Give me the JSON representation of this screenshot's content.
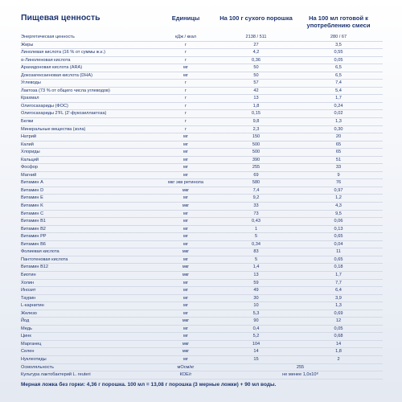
{
  "table": {
    "header": [
      "Пищевая ценность",
      "Единицы",
      "На 100 г сухого порошка",
      "На 100 мл готовой к употреблению смеси"
    ],
    "rows": [
      [
        "Энергетическая ценность",
        "кДж / ккал",
        "2138 / 511",
        "280 / 67"
      ],
      [
        "Жиры",
        "г",
        "27",
        "3,5"
      ],
      [
        "Линолевая кислота (16 % от суммы ж.к.)",
        "г",
        "4,2",
        "0,55"
      ],
      [
        "α-Линоленовая кислота",
        "г",
        "0,36",
        "0,05"
      ],
      [
        "Арахидоновая кислота (ARA)",
        "мг",
        "50",
        "6,5"
      ],
      [
        "Докозагексаеновая кислота (DHA)",
        "мг",
        "50",
        "6,5"
      ],
      [
        "Углеводы",
        "г",
        "57",
        "7,4"
      ],
      [
        "Лактоза (73 % от общего числа углеводов)",
        "г",
        "42",
        "5,4"
      ],
      [
        "Крахмал",
        "г",
        "13",
        "1,7"
      ],
      [
        "Олигосахариды (ФОС)",
        "г",
        "1,8",
        "0,24"
      ],
      [
        "Олигосахариды 2'FL (2'-фукозиллактоза)",
        "г",
        "0,15",
        "0,02"
      ],
      [
        "Белки",
        "г",
        "9,8",
        "1,3"
      ],
      [
        "Минеральные вещества (зола)",
        "г",
        "2,3",
        "0,30"
      ],
      [
        "Натрий",
        "мг",
        "150",
        "20"
      ],
      [
        "Калий",
        "мг",
        "500",
        "65"
      ],
      [
        "Хлориды",
        "мг",
        "500",
        "65"
      ],
      [
        "Кальций",
        "мг",
        "390",
        "51"
      ],
      [
        "Фосфор",
        "мг",
        "255",
        "33"
      ],
      [
        "Магний",
        "мг",
        "69",
        "9"
      ],
      [
        "Витамин А",
        "мкг экв ретинола",
        "580",
        "76"
      ],
      [
        "Витамин D",
        "мкг",
        "7,4",
        "0,97"
      ],
      [
        "Витамин E",
        "мг",
        "9,2",
        "1,2"
      ],
      [
        "Витамин K",
        "мкг",
        "33",
        "4,3"
      ],
      [
        "Витамин C",
        "мг",
        "73",
        "9,5"
      ],
      [
        "Витамин B1",
        "мг",
        "0,43",
        "0,06"
      ],
      [
        "Витамин B2",
        "мг",
        "1",
        "0,13"
      ],
      [
        "Витамин PP",
        "мг",
        "5",
        "0,65"
      ],
      [
        "Витамин B6",
        "мг",
        "0,34",
        "0,04"
      ],
      [
        "Фолиевая кислота",
        "мкг",
        "83",
        "11"
      ],
      [
        "Пантотеновая кислота",
        "мг",
        "5",
        "0,65"
      ],
      [
        "Витамин B12",
        "мкг",
        "1,4",
        "0,18"
      ],
      [
        "Биотин",
        "мкг",
        "13",
        "1,7"
      ],
      [
        "Холин",
        "мг",
        "59",
        "7,7"
      ],
      [
        "Инозит",
        "мг",
        "49",
        "6,4"
      ],
      [
        "Таурин",
        "мг",
        "30",
        "3,9"
      ],
      [
        "L-карнитин",
        "мг",
        "10",
        "1,3"
      ],
      [
        "Железо",
        "мг",
        "5,3",
        "0,69"
      ],
      [
        "Йод",
        "мкг",
        "90",
        "12"
      ],
      [
        "Медь",
        "мг",
        "0,4",
        "0,05"
      ],
      [
        "Цинк",
        "мг",
        "5,2",
        "0,68"
      ],
      [
        "Марганец",
        "мкг",
        "104",
        "14"
      ],
      [
        "Селен",
        "мкг",
        "14",
        "1,8"
      ],
      [
        "Нуклеотиды",
        "мг",
        "15",
        "2"
      ],
      [
        "Осмоляльность",
        "мОсм/кг",
        "255"
      ],
      [
        "Культура лактобактерий L. reuteri",
        "КОЕ/г",
        "не менее 1,0x10⁸"
      ]
    ],
    "footer": "Мерная ложка без горки: 4,36 г порошка. 100 мл = 13,08 г порошка (3 мерные ложки) + 90 мл воды."
  }
}
